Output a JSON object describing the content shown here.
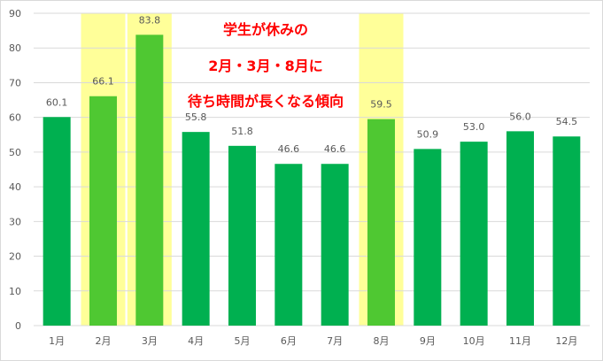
{
  "chart_data": {
    "type": "bar",
    "categories": [
      "1月",
      "2月",
      "3月",
      "4月",
      "5月",
      "6月",
      "7月",
      "8月",
      "9月",
      "10月",
      "11月",
      "12月"
    ],
    "values": [
      60.1,
      66.1,
      83.8,
      55.8,
      51.8,
      46.6,
      46.6,
      59.5,
      50.9,
      53.0,
      56.0,
      54.5
    ],
    "value_labels": [
      "60.1",
      "66.1",
      "83.8",
      "55.8",
      "51.8",
      "46.6",
      "46.6",
      "59.5",
      "50.9",
      "53.0",
      "56.0",
      "54.5"
    ],
    "highlighted_categories": [
      "2月",
      "3月",
      "8月"
    ],
    "ylim": [
      0,
      90
    ],
    "yticks": [
      0,
      10,
      20,
      30,
      40,
      50,
      60,
      70,
      80,
      90
    ],
    "grid": true,
    "legend": "none",
    "annotation_lines": [
      "学生が休みの",
      "2月・3月・8月に",
      "待ち時間が長くなる傾向"
    ],
    "colors": {
      "bar": "#00b050",
      "bar_highlighted": "#4fc832",
      "highlight_band": "#ffff99",
      "annotation": "#ff0000",
      "grid": "#d9d9d9",
      "text": "#595959"
    }
  }
}
